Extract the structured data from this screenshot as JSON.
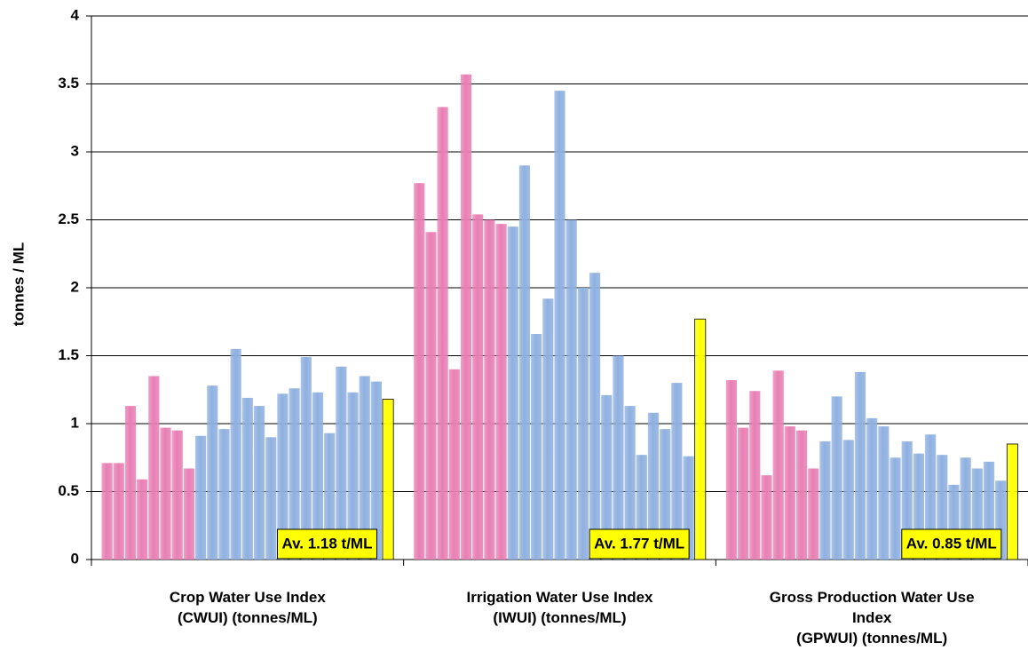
{
  "chart_data": {
    "type": "bar",
    "y_label": "tonnes / ML",
    "categories": [
      "Crop Water Use Index\n(CWUI) (tonnes/ML)",
      "Irrigation Water Use Index\n(IWUI) (tonnes/ML)",
      "Gross Production Water Use\nIndex\n(GPWUI) (tonnes/ML)"
    ],
    "ylim": [
      0,
      4
    ],
    "yticks": [
      0,
      0.5,
      1,
      1.5,
      2,
      2.5,
      3,
      3.5,
      4
    ],
    "grid": true,
    "series": [
      {
        "color": "#e87fb4",
        "values": [
          0.71,
          2.77,
          1.32
        ]
      },
      {
        "color": "#e87fb4",
        "values": [
          0.71,
          2.41,
          0.97
        ]
      },
      {
        "color": "#e87fb4",
        "values": [
          1.13,
          3.33,
          1.24
        ]
      },
      {
        "color": "#e87fb4",
        "values": [
          0.59,
          1.4,
          0.62
        ]
      },
      {
        "color": "#e87fb4",
        "values": [
          1.35,
          3.57,
          1.39
        ]
      },
      {
        "color": "#e87fb4",
        "values": [
          0.97,
          2.54,
          0.98
        ]
      },
      {
        "color": "#e87fb4",
        "values": [
          0.95,
          2.5,
          0.95
        ]
      },
      {
        "color": "#e87fb4",
        "values": [
          0.67,
          2.47,
          0.67
        ]
      },
      {
        "color": "#8fb0e0",
        "values": [
          0.91,
          2.45,
          0.87
        ]
      },
      {
        "color": "#8fb0e0",
        "values": [
          1.28,
          2.9,
          1.2
        ]
      },
      {
        "color": "#8fb0e0",
        "values": [
          0.96,
          1.66,
          0.88
        ]
      },
      {
        "color": "#8fb0e0",
        "values": [
          1.55,
          1.92,
          1.38
        ]
      },
      {
        "color": "#8fb0e0",
        "values": [
          1.19,
          3.45,
          1.04
        ]
      },
      {
        "color": "#8fb0e0",
        "values": [
          1.13,
          2.5,
          0.98
        ]
      },
      {
        "color": "#8fb0e0",
        "values": [
          0.9,
          2.0,
          0.75
        ]
      },
      {
        "color": "#8fb0e0",
        "values": [
          1.22,
          2.11,
          0.87
        ]
      },
      {
        "color": "#8fb0e0",
        "values": [
          1.26,
          1.21,
          0.78
        ]
      },
      {
        "color": "#8fb0e0",
        "values": [
          1.49,
          1.5,
          0.92
        ]
      },
      {
        "color": "#8fb0e0",
        "values": [
          1.23,
          1.13,
          0.77
        ]
      },
      {
        "color": "#8fb0e0",
        "values": [
          0.93,
          0.77,
          0.55
        ]
      },
      {
        "color": "#8fb0e0",
        "values": [
          1.42,
          1.08,
          0.75
        ]
      },
      {
        "color": "#8fb0e0",
        "values": [
          1.23,
          0.96,
          0.67
        ]
      },
      {
        "color": "#8fb0e0",
        "values": [
          1.35,
          1.3,
          0.72
        ]
      },
      {
        "color": "#8fb0e0",
        "values": [
          1.31,
          0.76,
          0.58
        ]
      },
      {
        "color": "#ffff00",
        "values": [
          1.18,
          1.77,
          0.85
        ],
        "value_labels": [
          "Av. 1.18 t/ML",
          "Av. 1.77 t/ML",
          "Av. 0.85 t/ML"
        ]
      }
    ]
  }
}
